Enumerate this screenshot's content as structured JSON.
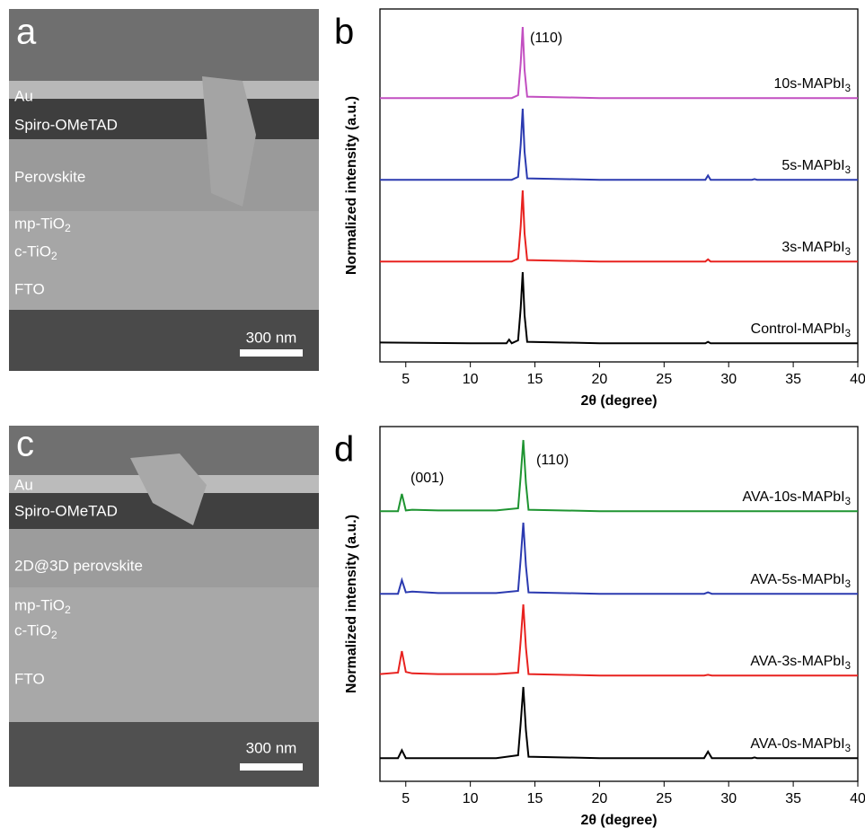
{
  "images": [
    {
      "label": "a",
      "layers": [
        "Au",
        "Spiro-OMeTAD",
        "Perovskite",
        "mp-TiO2",
        "c-TiO2",
        "FTO"
      ],
      "scale_bar": "300 nm"
    },
    {
      "label": "c",
      "layers": [
        "Au",
        "Spiro-OMeTAD",
        "2D@3D perovskite",
        "mp-TiO2",
        "c-TiO2",
        "FTO"
      ],
      "scale_bar": "300 nm"
    }
  ],
  "chart_data": [
    {
      "type": "line",
      "label": "b",
      "xlabel": "2θ (degree)",
      "ylabel": "Normalized intensity (a.u.)",
      "annotations": [
        "(110)"
      ],
      "x": [
        3,
        10,
        12.8,
        13,
        13.2,
        13.7,
        13.9,
        14.05,
        14.2,
        14.4,
        20,
        28.2,
        28.4,
        28.6,
        31.8,
        32,
        32.2,
        40
      ],
      "xlim": [
        3,
        40
      ],
      "xticks": [
        5,
        10,
        15,
        20,
        25,
        30,
        35,
        40
      ],
      "series": [
        {
          "name": "Control-MAPbI3",
          "color": "#000000",
          "values": [
            0.02,
            0.01,
            0.01,
            0.06,
            0.01,
            0.05,
            0.5,
            1,
            0.4,
            0.03,
            0.01,
            0.01,
            0.03,
            0.01,
            0.01,
            0.01,
            0.01,
            0.01
          ]
        },
        {
          "name": "3s-MAPbI3",
          "color": "#e8221f",
          "values": [
            0.01,
            0.01,
            0.01,
            0.01,
            0.01,
            0.05,
            0.5,
            1,
            0.4,
            0.03,
            0.01,
            0.01,
            0.04,
            0.01,
            0.01,
            0.01,
            0.01,
            0.01
          ]
        },
        {
          "name": "5s-MAPbI3",
          "color": "#2b3ab0",
          "values": [
            0.01,
            0.01,
            0.01,
            0.01,
            0.01,
            0.05,
            0.5,
            1,
            0.4,
            0.03,
            0.01,
            0.01,
            0.07,
            0.01,
            0.01,
            0.02,
            0.01,
            0.01
          ]
        },
        {
          "name": "10s-MAPbI3",
          "color": "#c24fc1",
          "values": [
            0.01,
            0.01,
            0.01,
            0.01,
            0.01,
            0.05,
            0.5,
            1,
            0.4,
            0.03,
            0.01,
            0.01,
            0.01,
            0.01,
            0.01,
            0.01,
            0.01,
            0.01
          ]
        }
      ]
    },
    {
      "type": "line",
      "label": "d",
      "xlabel": "2θ (degree)",
      "ylabel": "Normalized intensity (a.u.)",
      "annotations": [
        "(001)",
        "(110)"
      ],
      "x": [
        3,
        4.4,
        4.7,
        5.0,
        5.5,
        7.5,
        12,
        13.7,
        13.9,
        14.1,
        14.3,
        14.5,
        20,
        28.1,
        28.4,
        28.7,
        31.8,
        32,
        32.2,
        40
      ],
      "xlim": [
        3,
        40
      ],
      "xticks": [
        5,
        10,
        15,
        20,
        25,
        30,
        35,
        40
      ],
      "series": [
        {
          "name": "AVA-0s-MAPbI3",
          "color": "#000000",
          "values": [
            0.01,
            0.01,
            0.12,
            0.01,
            0.01,
            0.01,
            0.01,
            0.05,
            0.5,
            1,
            0.4,
            0.03,
            0.01,
            0.01,
            0.1,
            0.01,
            0.01,
            0.02,
            0.01,
            0.01
          ]
        },
        {
          "name": "AVA-3s-MAPbI3",
          "color": "#e8221f",
          "values": [
            0.03,
            0.05,
            0.35,
            0.06,
            0.04,
            0.03,
            0.03,
            0.05,
            0.5,
            1,
            0.4,
            0.03,
            0.01,
            0.01,
            0.02,
            0.01,
            0.01,
            0.01,
            0.01,
            0.01
          ]
        },
        {
          "name": "AVA-5s-MAPbI3",
          "color": "#2b3ab0",
          "values": [
            0.01,
            0.01,
            0.2,
            0.03,
            0.04,
            0.02,
            0.02,
            0.05,
            0.5,
            1,
            0.4,
            0.03,
            0.01,
            0.01,
            0.03,
            0.01,
            0.01,
            0.01,
            0.01,
            0.01
          ]
        },
        {
          "name": "AVA-10s-MAPbI3",
          "color": "#1e9431",
          "values": [
            0.01,
            0.01,
            0.25,
            0.02,
            0.03,
            0.02,
            0.02,
            0.05,
            0.5,
            1,
            0.4,
            0.03,
            0.01,
            0.01,
            0.01,
            0.01,
            0.01,
            0.01,
            0.01,
            0.01
          ]
        }
      ]
    }
  ]
}
